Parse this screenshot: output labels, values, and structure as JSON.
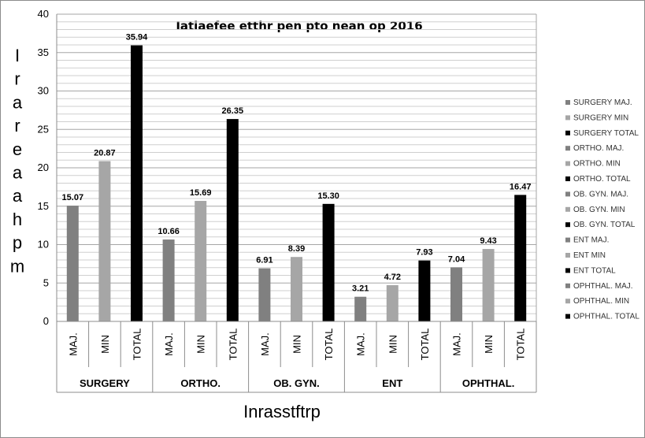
{
  "chart_data": {
    "type": "bar",
    "title": "Iatiaefee etthr pen pto nean op 2016",
    "xlabel": "Inrasstftrp",
    "ylabel": "Irareaahpm",
    "ylim": [
      0,
      40
    ],
    "yticks": [
      "0",
      "5",
      "10",
      "15",
      "20",
      "25",
      "30",
      "35",
      "40"
    ],
    "groups": [
      "SURGERY",
      "ORTHO.",
      "OB. GYN.",
      "ENT",
      "OPHTHAL."
    ],
    "subcategories": [
      "MAJ.",
      "MIN",
      "TOTAL"
    ],
    "values": [
      [
        15.07,
        20.87,
        35.94
      ],
      [
        10.66,
        15.69,
        26.35
      ],
      [
        6.91,
        8.39,
        15.3
      ],
      [
        3.21,
        4.72,
        7.93
      ],
      [
        7.04,
        9.43,
        16.47
      ]
    ],
    "value_labels": [
      [
        "15.07",
        "20.87",
        "35.94"
      ],
      [
        "10.66",
        "15.69",
        "26.35"
      ],
      [
        "6.91",
        "8.39",
        "15.30"
      ],
      [
        "3.21",
        "4.72",
        "7.93"
      ],
      [
        "7.04",
        "9.43",
        "16.47"
      ]
    ],
    "subcategory_colors": [
      "#808080",
      "#a6a6a6",
      "#000000"
    ],
    "legend_position": "right",
    "legend": [
      "SURGERY MAJ.",
      "SURGERY MIN",
      "SURGERY TOTAL",
      "ORTHO. MAJ.",
      "ORTHO. MIN",
      "ORTHO. TOTAL",
      "OB. GYN. MAJ.",
      "OB. GYN. MIN",
      "OB. GYN. TOTAL",
      "ENT MAJ.",
      "ENT MIN",
      "ENT TOTAL",
      "OPHTHAL. MAJ.",
      "OPHTHAL. MIN",
      "OPHTHAL. TOTAL"
    ],
    "grid": true
  }
}
